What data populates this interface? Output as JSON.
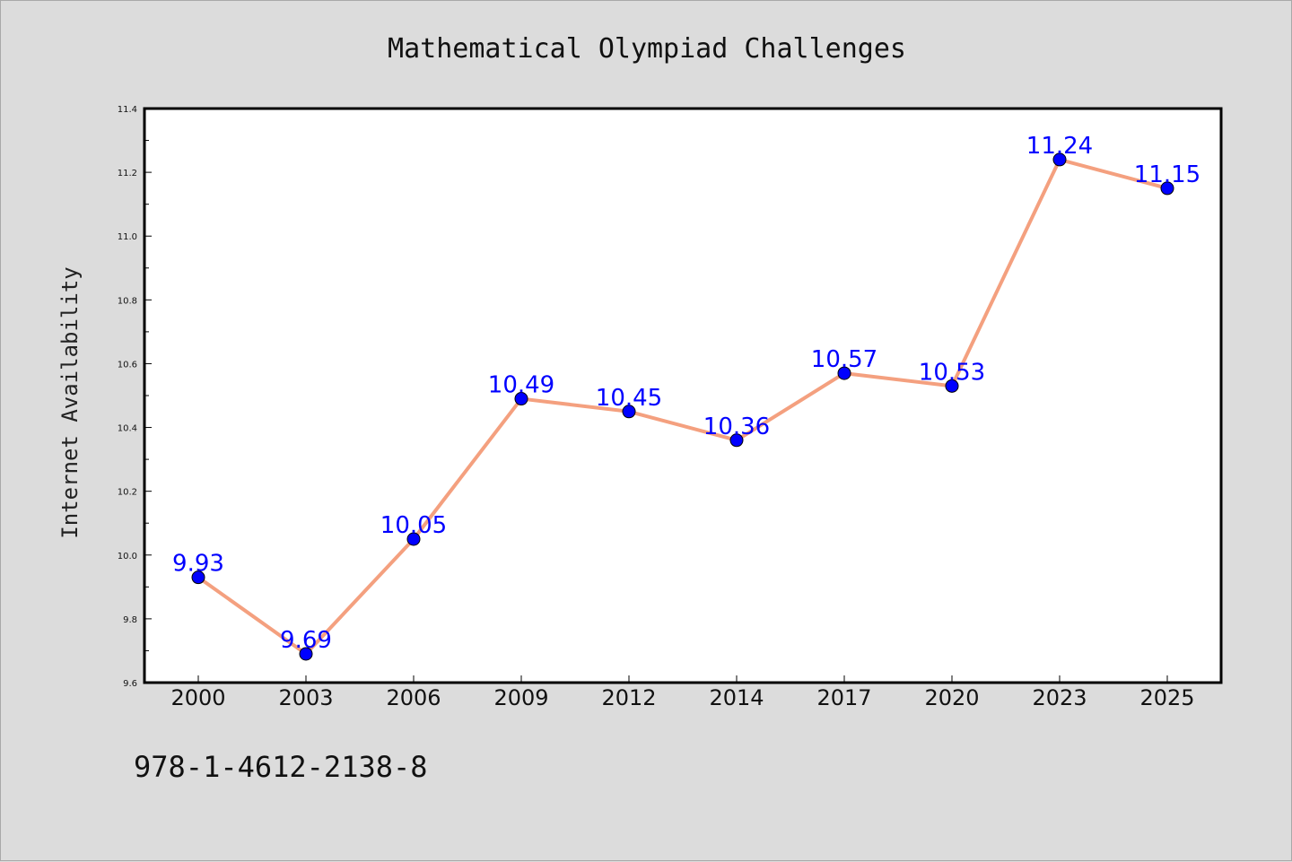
{
  "chart_data": {
    "type": "line",
    "title": "Mathematical Olympiad Challenges",
    "xlabel": "",
    "ylabel": "Internet Availability",
    "categories": [
      "2000",
      "2003",
      "2006",
      "2009",
      "2012",
      "2014",
      "2017",
      "2020",
      "2023",
      "2025"
    ],
    "series": [
      {
        "values": [
          9.93,
          9.69,
          10.05,
          10.49,
          10.45,
          10.36,
          10.57,
          10.53,
          11.24,
          11.15
        ]
      }
    ],
    "data_labels": [
      "9.93",
      "9.69",
      "10.05",
      "10.49",
      "10.45",
      "10.36",
      "10.57",
      "10.53",
      "11.24",
      "11.15"
    ],
    "ylim": [
      9.6,
      11.4
    ],
    "yticks": [
      "9.6",
      "9.8",
      "10.0",
      "10.2",
      "10.4",
      "10.6",
      "10.8",
      "11.0",
      "11.2",
      "11.4"
    ],
    "grid": false,
    "legend": "none",
    "colors": {
      "line": "#f4a07f",
      "marker": "#0000ff",
      "data_label": "#0000ff",
      "plot_bg": "#ffffff",
      "figure_bg": "#dcdcdc"
    }
  },
  "footer": {
    "isbn": "978-1-4612-2138-8"
  }
}
